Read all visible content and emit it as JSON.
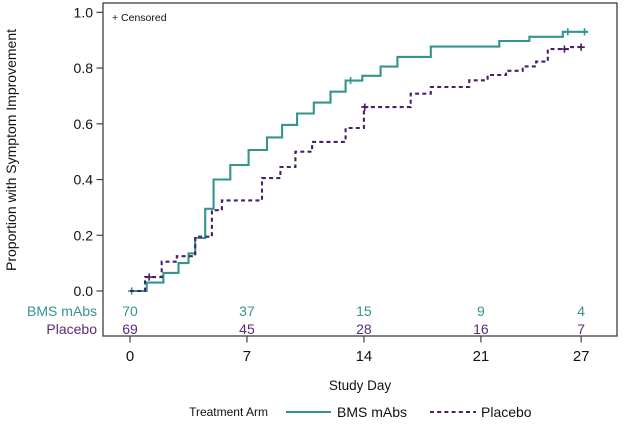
{
  "chart_data": {
    "type": "line",
    "subtype": "kaplan-meier-step",
    "title": "",
    "xlabel": "Study Day",
    "ylabel": "Proportion with Symptom Improvement",
    "censored_note": "+ Censored",
    "xlim": [
      0,
      27
    ],
    "xticks": [
      0,
      7,
      14,
      21,
      27
    ],
    "ylim": [
      0.0,
      1.0
    ],
    "yticks": [
      "0.0",
      "0.2",
      "0.4",
      "0.6",
      "0.8",
      "1.0"
    ],
    "grid": false,
    "legend": {
      "title": "Treatment Arm",
      "position": "bottom"
    },
    "series": [
      {
        "name": "BMS mAbs",
        "color": "#35948e",
        "line_style": "solid",
        "steps": [
          [
            0,
            0
          ],
          [
            1.0,
            0.03
          ],
          [
            2.0,
            0.065
          ],
          [
            2.9,
            0.1
          ],
          [
            3.5,
            0.135
          ],
          [
            3.9,
            0.19
          ],
          [
            4.5,
            0.295
          ],
          [
            5.0,
            0.4
          ],
          [
            6.0,
            0.452
          ],
          [
            7.1,
            0.506
          ],
          [
            8.2,
            0.551
          ],
          [
            9.1,
            0.596
          ],
          [
            10.0,
            0.637
          ],
          [
            11.0,
            0.676
          ],
          [
            12.0,
            0.715
          ],
          [
            12.9,
            0.755
          ],
          [
            13.9,
            0.772
          ],
          [
            15.0,
            0.805
          ],
          [
            16.0,
            0.84
          ],
          [
            18.0,
            0.877
          ],
          [
            22.1,
            0.897
          ],
          [
            23.9,
            0.912
          ],
          [
            25.9,
            0.93
          ]
        ],
        "end_day": 27.4,
        "censor_marks": [
          [
            0.1,
            0
          ],
          [
            13.2,
            0.755
          ],
          [
            26.2,
            0.93
          ],
          [
            27.2,
            0.93
          ]
        ]
      },
      {
        "name": "Placebo",
        "color": "#482069",
        "line_style": "dashed",
        "steps": [
          [
            0,
            0
          ],
          [
            0.9,
            0.05
          ],
          [
            1.9,
            0.105
          ],
          [
            2.8,
            0.125
          ],
          [
            3.9,
            0.195
          ],
          [
            4.9,
            0.29
          ],
          [
            5.5,
            0.325
          ],
          [
            7.9,
            0.405
          ],
          [
            9.0,
            0.445
          ],
          [
            9.9,
            0.5
          ],
          [
            10.9,
            0.535
          ],
          [
            12.9,
            0.585
          ],
          [
            14.0,
            0.66
          ],
          [
            16.8,
            0.708
          ],
          [
            18.0,
            0.732
          ],
          [
            20.3,
            0.756
          ],
          [
            21.4,
            0.775
          ],
          [
            22.5,
            0.79
          ],
          [
            23.5,
            0.806
          ],
          [
            24.3,
            0.823
          ],
          [
            25.0,
            0.868
          ],
          [
            26.4,
            0.875
          ]
        ],
        "end_day": 27.2,
        "censor_marks": [
          [
            1.15,
            0.05
          ],
          [
            14.05,
            0.66
          ],
          [
            26.0,
            0.868
          ],
          [
            27.0,
            0.875
          ]
        ]
      }
    ],
    "risk_table": {
      "days": [
        0,
        7,
        14,
        21,
        27
      ],
      "rows": [
        {
          "label": "BMS mAbs",
          "color": "#35948e",
          "counts": [
            "70",
            "37",
            "15",
            "9",
            "4"
          ]
        },
        {
          "label": "Placebo",
          "color": "#5a2a7c",
          "counts": [
            "69",
            "45",
            "28",
            "16",
            "7"
          ]
        }
      ]
    }
  }
}
